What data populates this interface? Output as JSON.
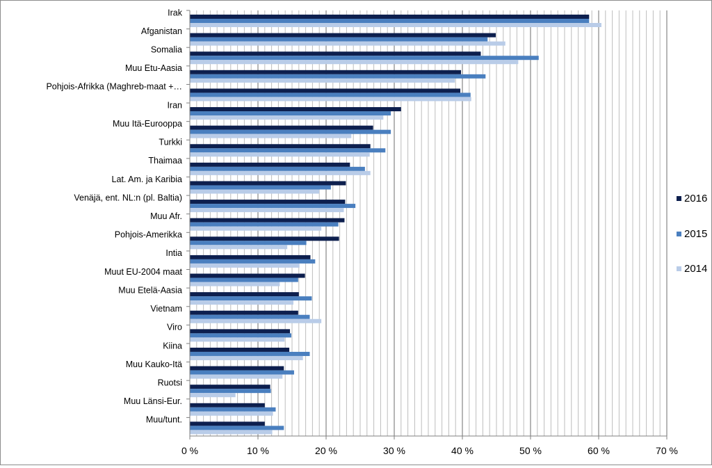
{
  "chart_data": {
    "type": "bar",
    "orientation": "horizontal",
    "categories": [
      "Irak",
      "Afganistan",
      "Somalia",
      "Muu Etu-Aasia",
      "Pohjois-Afrikka (Maghreb-maat +…",
      "Iran",
      "Muu Itä-Eurooppa",
      "Turkki",
      "Thaimaa",
      "Lat. Am. ja Karibia",
      "Venäjä, ent. NL:n (pl. Baltia)",
      "Muu Afr.",
      "Pohjois-Amerikka",
      "Intia",
      "Muut EU-2004 maat",
      "Muu Etelä-Aasia",
      "Vietnam",
      "Viro",
      "Kiina",
      "Muu Kauko-Itä",
      "Ruotsi",
      "Muu Länsi-Eur.",
      "Muu/tunt."
    ],
    "series": [
      {
        "name": "2016",
        "color": "#0d1f4e",
        "values": [
          58.6,
          44.9,
          42.7,
          39.8,
          39.7,
          31.0,
          26.9,
          26.5,
          23.5,
          22.9,
          22.8,
          22.7,
          21.9,
          17.7,
          16.9,
          16.0,
          15.9,
          14.7,
          14.6,
          13.8,
          11.8,
          11.0,
          11.0
        ]
      },
      {
        "name": "2015",
        "color": "#4a7fbf",
        "values": [
          58.6,
          43.7,
          51.2,
          43.4,
          41.2,
          29.5,
          29.5,
          28.7,
          25.7,
          20.7,
          24.3,
          21.8,
          17.1,
          18.4,
          15.9,
          17.9,
          17.6,
          14.9,
          17.6,
          15.3,
          11.9,
          12.6,
          13.8
        ]
      },
      {
        "name": "2014",
        "color": "#b9cce8",
        "values": [
          60.4,
          46.3,
          48.2,
          38.9,
          41.3,
          28.4,
          23.7,
          26.4,
          26.5,
          19.0,
          22.6,
          19.3,
          14.3,
          16.1,
          13.2,
          15.2,
          19.3,
          13.9,
          16.6,
          13.6,
          6.7,
          12.2,
          12.1
        ]
      }
    ],
    "x_ticks": [
      "0 %",
      "10 %",
      "20 %",
      "30 %",
      "40 %",
      "50 %",
      "60 %",
      "70 %"
    ],
    "xlim": [
      0,
      70
    ],
    "major_step": 10,
    "minor_step": 1,
    "grid": true,
    "legend_placement": "right",
    "title": "",
    "xlabel": "",
    "ylabel": ""
  }
}
